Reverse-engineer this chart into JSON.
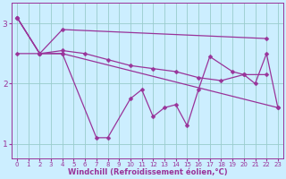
{
  "xlabel": "Windchill (Refroidissement éolien,°C)",
  "bg_color": "#cceeff",
  "line_color": "#993399",
  "grid_color": "#99cccc",
  "xlim": [
    -0.5,
    23.5
  ],
  "ylim": [
    0.75,
    3.35
  ],
  "xticks": [
    0,
    1,
    2,
    3,
    4,
    5,
    6,
    7,
    8,
    9,
    10,
    11,
    12,
    13,
    14,
    15,
    16,
    17,
    18,
    19,
    20,
    21,
    22,
    23
  ],
  "yticks": [
    1,
    2,
    3
  ],
  "lines": [
    {
      "x": [
        0,
        2,
        4,
        6,
        8,
        10,
        12,
        14,
        16,
        18,
        20,
        22
      ],
      "y": [
        3.1,
        2.5,
        2.55,
        2.5,
        2.4,
        2.3,
        2.25,
        2.2,
        2.1,
        2.05,
        2.15,
        2.15
      ]
    },
    {
      "x": [
        0,
        2,
        4,
        22
      ],
      "y": [
        3.1,
        2.5,
        2.9,
        2.75
      ]
    },
    {
      "x": [
        0,
        2,
        4,
        23
      ],
      "y": [
        2.5,
        2.5,
        2.5,
        1.6
      ]
    },
    {
      "x": [
        0,
        2,
        4,
        7,
        8,
        10,
        11,
        12,
        13,
        14,
        15,
        16,
        17,
        19,
        20,
        21,
        22,
        23
      ],
      "y": [
        3.1,
        2.5,
        2.5,
        1.1,
        1.1,
        1.75,
        1.9,
        1.45,
        1.6,
        1.65,
        1.3,
        1.9,
        2.45,
        2.2,
        2.15,
        2.0,
        2.5,
        1.6
      ]
    }
  ],
  "marker": "D",
  "markersize": 2.5,
  "linewidth": 0.9,
  "tick_fontsize": 5.0,
  "label_fontsize": 6.0
}
